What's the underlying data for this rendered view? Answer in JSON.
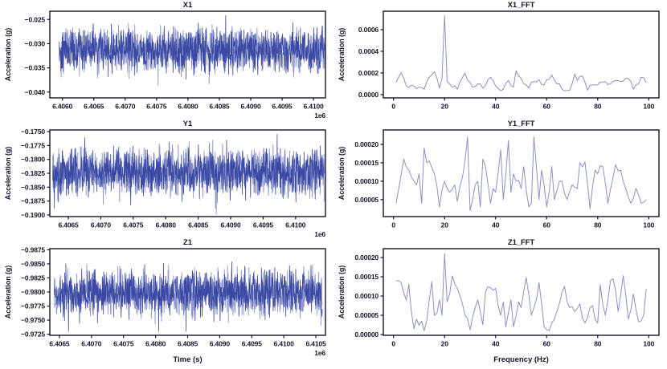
{
  "figure": {
    "background": "#ffffff"
  },
  "style": {
    "axis_color": "#14142b",
    "text_color": "#14142b",
    "timeseries_color": "#3a49a4",
    "timeseries_light_color": "#8d95cc",
    "fft_color": "#8b91c4"
  },
  "chart_data": [
    {
      "id": "X1",
      "type": "line",
      "kind": "noise",
      "title": "X1",
      "ylabel": "Acceleration (g)",
      "xlabel": "",
      "x_offset_label": "1e6",
      "grid": false,
      "legend": null,
      "xlim": [
        6405800,
        6410190
      ],
      "ylim": [
        -0.0412,
        -0.0233
      ],
      "xtick_vals": [
        6406000,
        6406500,
        6407000,
        6407500,
        6408000,
        6408500,
        6409000,
        6409500,
        6410000
      ],
      "xtick_labels": [
        "6.4060",
        "6.4065",
        "6.4070",
        "6.4075",
        "6.4080",
        "6.4085",
        "6.4090",
        "6.4095",
        "6.4100"
      ],
      "ytick_vals": [
        -0.025,
        -0.03,
        -0.035,
        -0.04
      ],
      "ytick_labels": [
        "−0.025",
        "−0.030",
        "−0.035",
        "−0.040"
      ],
      "series": {
        "n": 1000,
        "x_start": 6405950,
        "x_end": 6410180,
        "mean": -0.0313,
        "sigma": 0.0022,
        "clip": [
          -0.0404,
          -0.0242
        ],
        "spike_prob": 0.02,
        "spike_scale": 1.7,
        "seed": 42
      }
    },
    {
      "id": "Y1",
      "type": "line",
      "kind": "noise",
      "title": "Y1",
      "ylabel": "Acceleration (g)",
      "xlabel": "",
      "x_offset_label": "1e6",
      "grid": false,
      "legend": null,
      "xlim": [
        6406215,
        6410460
      ],
      "ylim": [
        -0.1903,
        -0.1747
      ],
      "xtick_vals": [
        6406500,
        6407000,
        6407500,
        6408000,
        6408500,
        6409000,
        6409500,
        6410000
      ],
      "xtick_labels": [
        "6.4065",
        "6.4070",
        "6.4075",
        "6.4080",
        "6.4085",
        "6.4090",
        "6.4095",
        "6.4100"
      ],
      "ytick_vals": [
        -0.175,
        -0.1775,
        -0.18,
        -0.1825,
        -0.185,
        -0.1875,
        -0.19
      ],
      "ytick_labels": [
        "−0.1750",
        "−0.1775",
        "−0.1800",
        "−0.1825",
        "−0.1850",
        "−0.1875",
        "−0.1900"
      ],
      "series": {
        "n": 1000,
        "x_start": 6406260,
        "x_end": 6410440,
        "mean": -0.1824,
        "sigma": 0.002,
        "clip": [
          -0.1899,
          -0.1754
        ],
        "spike_prob": 0.02,
        "spike_scale": 1.7,
        "seed": 77
      }
    },
    {
      "id": "Z1",
      "type": "line",
      "kind": "noise",
      "title": "Z1",
      "ylabel": "Acceleration (g)",
      "xlabel": "Time (s)",
      "x_offset_label": "1e6",
      "grid": false,
      "legend": null,
      "xlim": [
        6406350,
        6410650
      ],
      "ylim": [
        -0.9723,
        -0.9877
      ],
      "xtick_vals": [
        6406500,
        6407000,
        6407500,
        6408000,
        6408500,
        6409000,
        6409500,
        6410000,
        6410500
      ],
      "xtick_labels": [
        "6.4065",
        "6.4070",
        "6.4075",
        "6.4080",
        "6.4085",
        "6.4090",
        "6.4095",
        "6.4100",
        "6.4105"
      ],
      "ytick_vals": [
        -0.9875,
        -0.985,
        -0.9825,
        -0.98,
        -0.9775,
        -0.975,
        -0.9725
      ],
      "ytick_labels": [
        "−0.9875",
        "−0.9850",
        "−0.9825",
        "−0.9800",
        "−0.9775",
        "−0.9750",
        "−0.9725"
      ],
      "series": {
        "n": 1000,
        "x_start": 6406420,
        "x_end": 6410600,
        "mean": -0.9799,
        "sigma": 0.0019,
        "clip": [
          -0.9862,
          -0.973
        ],
        "spike_prob": 0.02,
        "spike_scale": 1.7,
        "seed": 99
      }
    },
    {
      "id": "X1_FFT",
      "type": "line",
      "kind": "fft",
      "title": "X1_FFT",
      "ylabel": "Acceleration (g)",
      "xlabel": "",
      "x_offset_label": "",
      "grid": false,
      "legend": null,
      "xlim": [
        -4,
        104
      ],
      "ylim": [
        -3e-05,
        0.00077
      ],
      "xtick_vals": [
        0,
        20,
        40,
        60,
        80,
        100
      ],
      "xtick_labels": [
        "0",
        "20",
        "40",
        "60",
        "80",
        "100"
      ],
      "ytick_vals": [
        0.0,
        0.0002,
        0.0004,
        0.0006
      ],
      "ytick_labels": [
        "0.0000",
        "0.0002",
        "0.0004",
        "0.0006"
      ],
      "series": {
        "x_start": 1,
        "x_end": 99,
        "base": [
          4e-05,
          0.00015
        ],
        "jitter": 5e-05,
        "seed": 5,
        "anchors": [
          [
            1,
            0.00011
          ],
          [
            3,
            0.0002
          ],
          [
            5,
            8e-05
          ],
          [
            8,
            8e-05
          ],
          [
            10,
            7e-05
          ],
          [
            12,
            5e-05
          ],
          [
            14,
            0.00016
          ],
          [
            16,
            0.00021
          ],
          [
            18,
            6e-05
          ],
          [
            19,
            0.00015
          ],
          [
            20,
            0.00073
          ],
          [
            21,
            0.00012
          ],
          [
            22,
            0.0001
          ],
          [
            25,
            5e-05
          ],
          [
            28,
            0.0002
          ],
          [
            31,
            7e-05
          ],
          [
            33,
            0.0001
          ],
          [
            35,
            6e-05
          ],
          [
            38,
            0.00016
          ],
          [
            40,
            8e-05
          ],
          [
            43,
            5e-05
          ],
          [
            45,
            0.00013
          ],
          [
            47,
            7e-05
          ],
          [
            48,
            0.00022
          ],
          [
            50,
            0.00015
          ],
          [
            53,
            6e-05
          ],
          [
            55,
            0.00012
          ],
          [
            57,
            0.00014
          ],
          [
            59,
            9e-05
          ],
          [
            62,
            0.00018
          ],
          [
            64,
            0.0001
          ],
          [
            66,
            5e-05
          ],
          [
            69,
            4e-05
          ],
          [
            71,
            0.00019
          ],
          [
            72,
            0.00013
          ],
          [
            74,
            0.00017
          ],
          [
            76,
            4e-05
          ],
          [
            78,
            9e-05
          ],
          [
            80,
            9e-05
          ],
          [
            83,
            0.00012
          ],
          [
            85,
            0.0001
          ],
          [
            87,
            0.00013
          ],
          [
            89,
            0.00012
          ],
          [
            91,
            0.00015
          ],
          [
            93,
            0.00012
          ],
          [
            94,
            5e-05
          ],
          [
            97,
            0.00016
          ],
          [
            99,
            0.00011
          ]
        ]
      }
    },
    {
      "id": "Y1_FFT",
      "type": "line",
      "kind": "fft",
      "title": "Y1_FFT",
      "ylabel": "Acceleration (g)",
      "xlabel": "",
      "x_offset_label": "",
      "grid": false,
      "legend": null,
      "xlim": [
        -4,
        104
      ],
      "ylim": [
        4e-06,
        0.000239
      ],
      "xtick_vals": [
        0,
        20,
        40,
        60,
        80,
        100
      ],
      "xtick_labels": [
        "0",
        "20",
        "40",
        "60",
        "80",
        "100"
      ],
      "ytick_vals": [
        5e-05,
        0.0001,
        0.00015,
        0.0002
      ],
      "ytick_labels": [
        "0.00005",
        "0.00010",
        "0.00015",
        "0.00020"
      ],
      "series": {
        "x_start": 1,
        "x_end": 99,
        "base": [
          2e-05,
          0.00015
        ],
        "jitter": 3e-05,
        "seed": 21,
        "anchors": [
          [
            1,
            4e-05
          ],
          [
            4,
            0.00016
          ],
          [
            6,
            0.00013
          ],
          [
            8,
            0.0001
          ],
          [
            9,
            9e-05
          ],
          [
            10,
            0.00012
          ],
          [
            11,
            4e-05
          ],
          [
            12,
            0.00019
          ],
          [
            13,
            0.00015
          ],
          [
            14,
            0.000155
          ],
          [
            16,
            0.00012
          ],
          [
            18,
            3e-05
          ],
          [
            20,
            0.0001
          ],
          [
            22,
            7e-05
          ],
          [
            24,
            9e-05
          ],
          [
            25,
            4.5e-05
          ],
          [
            27,
            0.00011
          ],
          [
            29,
            0.00022
          ],
          [
            30,
            2e-05
          ],
          [
            32,
            9e-05
          ],
          [
            33,
            0.0001
          ],
          [
            34,
            3e-05
          ],
          [
            35,
            0.00016
          ],
          [
            36,
            0.00014
          ],
          [
            38,
            4e-05
          ],
          [
            39,
            8e-05
          ],
          [
            40,
            7e-05
          ],
          [
            42,
            0.000185
          ],
          [
            43,
            5e-05
          ],
          [
            45,
            0.00021
          ],
          [
            46,
            7e-05
          ],
          [
            47,
            0.00012
          ],
          [
            48,
            0.0001
          ],
          [
            50,
            8e-05
          ],
          [
            51,
            0.00014
          ],
          [
            53,
            3e-05
          ],
          [
            54,
            4e-05
          ],
          [
            55,
            0.00022
          ],
          [
            57,
            5e-05
          ],
          [
            58,
            0.00013
          ],
          [
            60,
            3e-05
          ],
          [
            62,
            0.00014
          ],
          [
            63,
            5e-05
          ],
          [
            65,
            0.0001
          ],
          [
            66,
            0.0001
          ],
          [
            68,
            5e-05
          ],
          [
            70,
            9e-05
          ],
          [
            72,
            8e-05
          ],
          [
            73,
            0.00015
          ],
          [
            75,
            0.000152
          ],
          [
            77,
            2.5e-05
          ],
          [
            79,
            0.00013
          ],
          [
            80,
            0.00012
          ],
          [
            82,
            0.00014
          ],
          [
            84,
            4e-05
          ],
          [
            86,
            0.00011
          ],
          [
            87,
            0.000145
          ],
          [
            89,
            0.00013
          ],
          [
            91,
            8e-05
          ],
          [
            93,
            4e-05
          ],
          [
            95,
            8e-05
          ],
          [
            97,
            4e-05
          ],
          [
            99,
            5e-05
          ]
        ]
      }
    },
    {
      "id": "Z1_FFT",
      "type": "line",
      "kind": "fft",
      "title": "Z1_FFT",
      "ylabel": "Acceleration (g)",
      "xlabel": "Frequency (Hz)",
      "x_offset_label": "",
      "grid": false,
      "legend": null,
      "xlim": [
        -4,
        104
      ],
      "ylim": [
        -2e-06,
        0.000223
      ],
      "xtick_vals": [
        0,
        20,
        40,
        60,
        80,
        100
      ],
      "xtick_labels": [
        "0",
        "20",
        "40",
        "60",
        "80",
        "100"
      ],
      "ytick_vals": [
        0.0,
        5e-05,
        0.0001,
        0.00015,
        0.0002
      ],
      "ytick_labels": [
        "0.00000",
        "0.00005",
        "0.00010",
        "0.00015",
        "0.00020"
      ],
      "series": {
        "x_start": 1,
        "x_end": 99,
        "base": [
          2e-05,
          0.00014
        ],
        "jitter": 3e-05,
        "seed": 13,
        "anchors": [
          [
            1,
            0.00014
          ],
          [
            3,
            0.000135
          ],
          [
            5,
            9e-05
          ],
          [
            6,
            0.00013
          ],
          [
            8,
            1.5e-05
          ],
          [
            9,
            4e-05
          ],
          [
            11,
            3.5e-05
          ],
          [
            12,
            1e-05
          ],
          [
            14,
            9e-05
          ],
          [
            15,
            0.000137
          ],
          [
            16,
            5e-05
          ],
          [
            18,
            9e-05
          ],
          [
            19,
            5e-05
          ],
          [
            20,
            0.00021
          ],
          [
            21,
            8.5e-05
          ],
          [
            23,
            0.000152
          ],
          [
            25,
            0.00012
          ],
          [
            27,
            8e-05
          ],
          [
            28,
            5e-05
          ],
          [
            30,
            1.2e-05
          ],
          [
            32,
            7e-05
          ],
          [
            33,
            9e-05
          ],
          [
            34,
            6e-05
          ],
          [
            35,
            2.5e-05
          ],
          [
            36,
            0.00011
          ],
          [
            38,
            0.000122
          ],
          [
            40,
            0.00012
          ],
          [
            42,
            5e-05
          ],
          [
            43,
            8.5e-05
          ],
          [
            44,
            2e-05
          ],
          [
            46,
            9e-05
          ],
          [
            47,
            2e-05
          ],
          [
            49,
            8.5e-05
          ],
          [
            50,
            7e-05
          ],
          [
            52,
            0.000148
          ],
          [
            54,
            5e-05
          ],
          [
            55,
            7e-05
          ],
          [
            57,
            0.000135
          ],
          [
            59,
            2e-05
          ],
          [
            61,
            1e-05
          ],
          [
            63,
            4e-05
          ],
          [
            64,
            6e-05
          ],
          [
            66,
            0.00011
          ],
          [
            67,
            0.000125
          ],
          [
            69,
            7e-05
          ],
          [
            71,
            6e-05
          ],
          [
            73,
            8e-05
          ],
          [
            75,
            3e-05
          ],
          [
            77,
            7e-05
          ],
          [
            78,
            7.5e-05
          ],
          [
            80,
            3e-05
          ],
          [
            81,
            0.00013
          ],
          [
            83,
            5e-05
          ],
          [
            85,
            0.00014
          ],
          [
            86,
            0.000145
          ],
          [
            88,
            6e-05
          ],
          [
            90,
            0.000153
          ],
          [
            92,
            4e-05
          ],
          [
            94,
            0.000105
          ],
          [
            96,
            3.3e-05
          ],
          [
            98,
            5e-05
          ],
          [
            99,
            0.000118
          ]
        ]
      }
    }
  ]
}
